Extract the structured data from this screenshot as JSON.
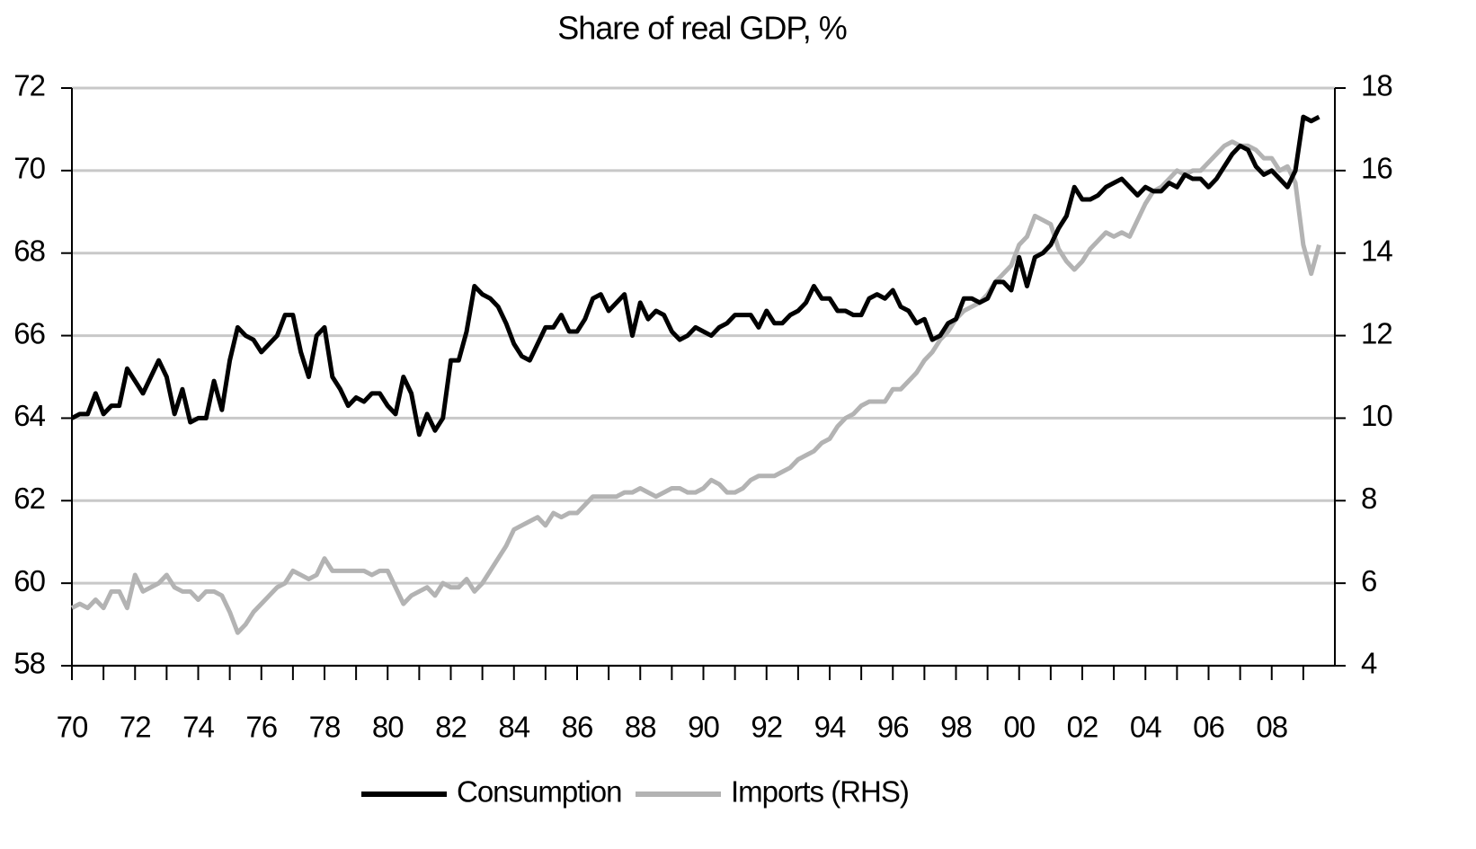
{
  "chart_data": {
    "type": "line",
    "title": "Share of real GDP, %",
    "x": [
      1970,
      1970.25,
      1970.5,
      1970.75,
      1971,
      1971.25,
      1971.5,
      1971.75,
      1972,
      1972.25,
      1972.5,
      1972.75,
      1973,
      1973.25,
      1973.5,
      1973.75,
      1974,
      1974.25,
      1974.5,
      1974.75,
      1975,
      1975.25,
      1975.5,
      1975.75,
      1976,
      1976.25,
      1976.5,
      1976.75,
      1977,
      1977.25,
      1977.5,
      1977.75,
      1978,
      1978.25,
      1978.5,
      1978.75,
      1979,
      1979.25,
      1979.5,
      1979.75,
      1980,
      1980.25,
      1980.5,
      1980.75,
      1981,
      1981.25,
      1981.5,
      1981.75,
      1982,
      1982.25,
      1982.5,
      1982.75,
      1983,
      1983.25,
      1983.5,
      1983.75,
      1984,
      1984.25,
      1984.5,
      1984.75,
      1985,
      1985.25,
      1985.5,
      1985.75,
      1986,
      1986.25,
      1986.5,
      1986.75,
      1987,
      1987.25,
      1987.5,
      1987.75,
      1988,
      1988.25,
      1988.5,
      1988.75,
      1989,
      1989.25,
      1989.5,
      1989.75,
      1990,
      1990.25,
      1990.5,
      1990.75,
      1991,
      1991.25,
      1991.5,
      1991.75,
      1992,
      1992.25,
      1992.5,
      1992.75,
      1993,
      1993.25,
      1993.5,
      1993.75,
      1994,
      1994.25,
      1994.5,
      1994.75,
      1995,
      1995.25,
      1995.5,
      1995.75,
      1996,
      1996.25,
      1996.5,
      1996.75,
      1997,
      1997.25,
      1997.5,
      1997.75,
      1998,
      1998.25,
      1998.5,
      1998.75,
      1999,
      1999.25,
      1999.5,
      1999.75,
      2000,
      2000.25,
      2000.5,
      2000.75,
      2001,
      2001.25,
      2001.5,
      2001.75,
      2002,
      2002.25,
      2002.5,
      2002.75,
      2003,
      2003.25,
      2003.5,
      2003.75,
      2004,
      2004.25,
      2004.5,
      2004.75,
      2005,
      2005.25,
      2005.5,
      2005.75,
      2006,
      2006.25,
      2006.5,
      2006.75,
      2007,
      2007.25,
      2007.5,
      2007.75,
      2008,
      2008.25,
      2008.5,
      2008.75,
      2009,
      2009.25,
      2009.5
    ],
    "series": [
      {
        "name": "Consumption",
        "color": "#000000",
        "axis": "y",
        "values": [
          64.0,
          64.1,
          64.1,
          64.6,
          64.1,
          64.3,
          64.3,
          65.2,
          64.9,
          64.6,
          65.0,
          65.4,
          65.0,
          64.1,
          64.7,
          63.9,
          64.0,
          64.0,
          64.9,
          64.2,
          65.4,
          66.2,
          66.0,
          65.9,
          65.6,
          65.8,
          66.0,
          66.5,
          66.5,
          65.6,
          65.0,
          66.0,
          66.2,
          65.0,
          64.7,
          64.3,
          64.5,
          64.4,
          64.6,
          64.6,
          64.3,
          64.1,
          65.0,
          64.6,
          63.6,
          64.1,
          63.7,
          64.0,
          65.4,
          65.4,
          66.1,
          67.2,
          67.0,
          66.9,
          66.7,
          66.3,
          65.8,
          65.5,
          65.4,
          65.8,
          66.2,
          66.2,
          66.5,
          66.1,
          66.1,
          66.4,
          66.9,
          67.0,
          66.6,
          66.8,
          67.0,
          66.0,
          66.8,
          66.4,
          66.6,
          66.5,
          66.1,
          65.9,
          66.0,
          66.2,
          66.1,
          66.0,
          66.2,
          66.3,
          66.5,
          66.5,
          66.5,
          66.2,
          66.6,
          66.3,
          66.3,
          66.5,
          66.6,
          66.8,
          67.2,
          66.9,
          66.9,
          66.6,
          66.6,
          66.5,
          66.5,
          66.9,
          67.0,
          66.9,
          67.1,
          66.7,
          66.6,
          66.3,
          66.4,
          65.9,
          66.0,
          66.3,
          66.4,
          66.9,
          66.9,
          66.8,
          66.9,
          67.3,
          67.3,
          67.1,
          67.9,
          67.2,
          67.9,
          68.0,
          68.2,
          68.6,
          68.9,
          69.6,
          69.3,
          69.3,
          69.4,
          69.6,
          69.7,
          69.8,
          69.6,
          69.4,
          69.6,
          69.5,
          69.5,
          69.7,
          69.6,
          69.9,
          69.8,
          69.8,
          69.6,
          69.8,
          70.1,
          70.4,
          70.6,
          70.5,
          70.1,
          69.9,
          70.0,
          69.8,
          69.6,
          70.0,
          71.3,
          71.2,
          71.3
        ]
      },
      {
        "name": "Imports (RHS)",
        "color": "#b3b3b3",
        "axis": "y2",
        "values": [
          5.4,
          5.5,
          5.4,
          5.6,
          5.4,
          5.8,
          5.8,
          5.4,
          6.2,
          5.8,
          5.9,
          6.0,
          6.2,
          5.9,
          5.8,
          5.8,
          5.6,
          5.8,
          5.8,
          5.7,
          5.3,
          4.8,
          5.0,
          5.3,
          5.5,
          5.7,
          5.9,
          6.0,
          6.3,
          6.2,
          6.1,
          6.2,
          6.6,
          6.3,
          6.3,
          6.3,
          6.3,
          6.3,
          6.2,
          6.3,
          6.3,
          5.9,
          5.5,
          5.7,
          5.8,
          5.9,
          5.7,
          6.0,
          5.9,
          5.9,
          6.1,
          5.8,
          6.0,
          6.3,
          6.6,
          6.9,
          7.3,
          7.4,
          7.5,
          7.6,
          7.4,
          7.7,
          7.6,
          7.7,
          7.7,
          7.9,
          8.1,
          8.1,
          8.1,
          8.1,
          8.2,
          8.2,
          8.3,
          8.2,
          8.1,
          8.2,
          8.3,
          8.3,
          8.2,
          8.2,
          8.3,
          8.5,
          8.4,
          8.2,
          8.2,
          8.3,
          8.5,
          8.6,
          8.6,
          8.6,
          8.7,
          8.8,
          9.0,
          9.1,
          9.2,
          9.4,
          9.5,
          9.8,
          10.0,
          10.1,
          10.3,
          10.4,
          10.4,
          10.4,
          10.7,
          10.7,
          10.9,
          11.1,
          11.4,
          11.6,
          11.9,
          12.1,
          12.4,
          12.6,
          12.7,
          12.8,
          13.0,
          13.3,
          13.5,
          13.7,
          14.2,
          14.4,
          14.9,
          14.8,
          14.7,
          14.1,
          13.8,
          13.6,
          13.8,
          14.1,
          14.3,
          14.5,
          14.4,
          14.5,
          14.4,
          14.8,
          15.2,
          15.5,
          15.6,
          15.8,
          16.0,
          15.9,
          16.0,
          16.0,
          16.2,
          16.4,
          16.6,
          16.7,
          16.6,
          16.6,
          16.5,
          16.3,
          16.3,
          16.0,
          16.1,
          15.7,
          14.2,
          13.5,
          14.2
        ]
      }
    ],
    "xlim": [
      1970,
      2010
    ],
    "xticks": [
      {
        "value": 1970,
        "label": "70"
      },
      {
        "value": 1972,
        "label": "72"
      },
      {
        "value": 1974,
        "label": "74"
      },
      {
        "value": 1976,
        "label": "76"
      },
      {
        "value": 1978,
        "label": "78"
      },
      {
        "value": 1980,
        "label": "80"
      },
      {
        "value": 1982,
        "label": "82"
      },
      {
        "value": 1984,
        "label": "84"
      },
      {
        "value": 1986,
        "label": "86"
      },
      {
        "value": 1988,
        "label": "88"
      },
      {
        "value": 1990,
        "label": "90"
      },
      {
        "value": 1992,
        "label": "92"
      },
      {
        "value": 1994,
        "label": "94"
      },
      {
        "value": 1996,
        "label": "96"
      },
      {
        "value": 1998,
        "label": "98"
      },
      {
        "value": 2000,
        "label": "00"
      },
      {
        "value": 2002,
        "label": "02"
      },
      {
        "value": 2004,
        "label": "04"
      },
      {
        "value": 2006,
        "label": "06"
      },
      {
        "value": 2008,
        "label": "08"
      }
    ],
    "xminorticks": [
      1971,
      1973,
      1975,
      1977,
      1979,
      1981,
      1983,
      1985,
      1987,
      1989,
      1991,
      1993,
      1995,
      1997,
      1999,
      2001,
      2003,
      2005,
      2007,
      2009
    ],
    "ylim": [
      58,
      72
    ],
    "yticks": [
      58,
      60,
      62,
      64,
      66,
      68,
      70,
      72
    ],
    "y2lim": [
      4,
      18
    ],
    "y2ticks": [
      4,
      6,
      8,
      10,
      12,
      14,
      16,
      18
    ],
    "grid": true,
    "legend": "bottom"
  }
}
